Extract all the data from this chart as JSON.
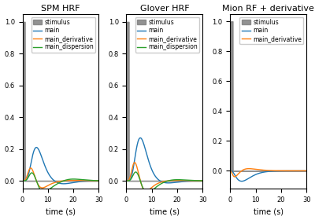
{
  "titles": [
    "SPM HRF",
    "Glover HRF",
    "Mion RF + derivative"
  ],
  "xlabel": "time (s)",
  "xlim": [
    0,
    30
  ],
  "ylim_main": [
    -0.05,
    1.05
  ],
  "ylim_mion": [
    -0.12,
    1.05
  ],
  "stimulus_color": "#7f7f7f",
  "main_color": "#1f77b4",
  "derivative_color": "#ff7f0e",
  "dispersion_color": "#2ca02c",
  "legend_labels_12": [
    "stimulus",
    "main",
    "main_derivative",
    "main_dispersion"
  ],
  "legend_labels_3": [
    "stimulus",
    "main",
    "main_derivative"
  ],
  "stimulus_duration": 1.0,
  "t_max": 30,
  "dt": 0.05,
  "figsize": [
    4.0,
    2.8
  ],
  "dpi": 100
}
